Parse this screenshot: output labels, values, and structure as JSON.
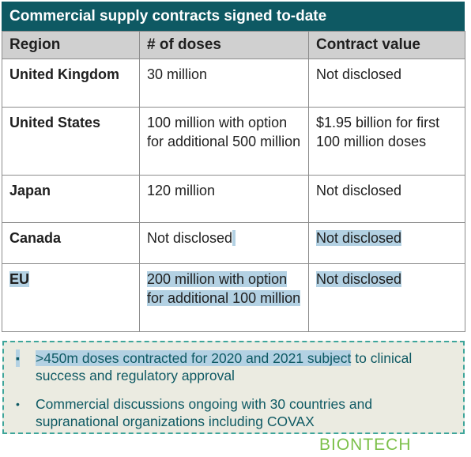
{
  "title": "Commercial supply contracts signed to-date",
  "table": {
    "headers": [
      "Region",
      "# of doses",
      "Contract value"
    ],
    "rows": [
      {
        "region": "United Kingdom",
        "doses": "30 million",
        "value": "Not disclosed"
      },
      {
        "region": "United States",
        "doses": "100 million with option for additional 500 million",
        "value": "$1.95 billion for first 100 million doses"
      },
      {
        "region": "Japan",
        "doses": "120 million",
        "value": "Not disclosed"
      },
      {
        "region": "Canada",
        "doses": "Not disclosed",
        "value": "Not disclosed"
      },
      {
        "region": "EU",
        "doses": "200 million with option for additional 100 million",
        "value": "Not disclosed"
      }
    ]
  },
  "notes": {
    "bullet_1_highlighted": ">450m doses contracted for 2020 and 2021 subject",
    "bullet_1_rest": " to clinical success and regulatory approval",
    "bullet_2": "Commercial discussions ongoing with 30 countries and supranational organizations including COVAX"
  },
  "logo": "BIONTECH",
  "colors": {
    "title_bg": "#0e5963",
    "header_bg": "#d0d0d0",
    "highlight": "#b3d1e3",
    "note_bg": "#ebebe1",
    "note_border": "#3ea59a",
    "logo": "#7cc04a"
  }
}
